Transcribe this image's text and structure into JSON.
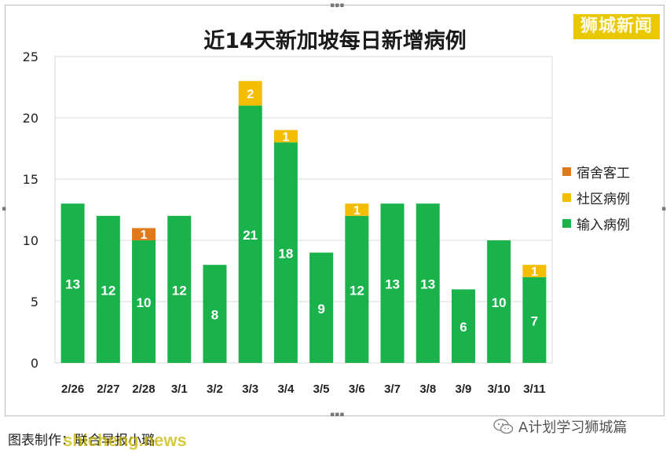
{
  "logo_text": "狮城新闻",
  "caption": "图表制作：联合早报小璐",
  "watermark": "shicheng.news",
  "account": "A计划学习狮城篇",
  "colors": {
    "import": "#1ab24b",
    "community": "#f5bd00",
    "dormitory": "#e0791b"
  },
  "chart_data": {
    "type": "bar",
    "stacked": true,
    "title": "近14天新加坡每日新增病例",
    "categories": [
      "2/26",
      "2/27",
      "2/28",
      "3/1",
      "3/2",
      "3/3",
      "3/4",
      "3/5",
      "3/6",
      "3/7",
      "3/8",
      "3/9",
      "3/10",
      "3/11"
    ],
    "series": [
      {
        "name": "输入病例",
        "values": [
          13,
          12,
          10,
          12,
          8,
          21,
          18,
          9,
          12,
          13,
          13,
          6,
          10,
          7
        ]
      },
      {
        "name": "社区病例",
        "values": [
          0,
          0,
          0,
          0,
          0,
          2,
          1,
          0,
          1,
          0,
          0,
          0,
          0,
          1
        ]
      },
      {
        "name": "宿舍客工",
        "values": [
          0,
          0,
          1,
          0,
          0,
          0,
          0,
          0,
          0,
          0,
          0,
          0,
          0,
          0
        ]
      }
    ],
    "legend_order": [
      "宿舍客工",
      "社区病例",
      "输入病例"
    ],
    "yticks": [
      0,
      5,
      10,
      15,
      20,
      25
    ],
    "ylim": [
      0,
      25
    ],
    "grid": true,
    "legend_position": "right"
  }
}
